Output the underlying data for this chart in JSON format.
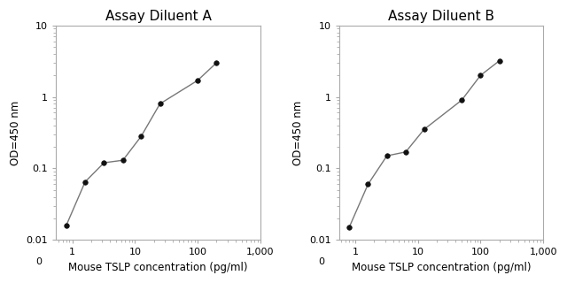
{
  "panel_A": {
    "title": "Assay Diluent A",
    "x": [
      0.8,
      1.6,
      3.2,
      6.4,
      12.5,
      25,
      100,
      200
    ],
    "y": [
      0.016,
      0.065,
      0.12,
      0.13,
      0.28,
      0.8,
      1.7,
      3.0
    ]
  },
  "panel_B": {
    "title": "Assay Diluent B",
    "x": [
      0.8,
      1.6,
      3.2,
      6.4,
      12.5,
      50,
      100,
      200
    ],
    "y": [
      0.015,
      0.06,
      0.15,
      0.17,
      0.35,
      0.9,
      2.0,
      3.2
    ]
  },
  "xlabel": "Mouse TSLP concentration (pg/ml)",
  "ylabel": "OD=450 nm",
  "xlim": [
    0.55,
    1000
  ],
  "ylim": [
    0.01,
    10
  ],
  "xticks": [
    1,
    10,
    100,
    1000
  ],
  "xtick_labels": [
    "1",
    "10",
    "100",
    "1,000"
  ],
  "yticks": [
    0.01,
    0.1,
    1,
    10
  ],
  "ytick_labels": [
    "0.01",
    "0.1",
    "1",
    "10"
  ],
  "line_color": "#777777",
  "marker_color": "#111111",
  "marker_size": 4,
  "bg_color": "#ffffff",
  "title_fontsize": 11,
  "label_fontsize": 8.5,
  "tick_fontsize": 8
}
